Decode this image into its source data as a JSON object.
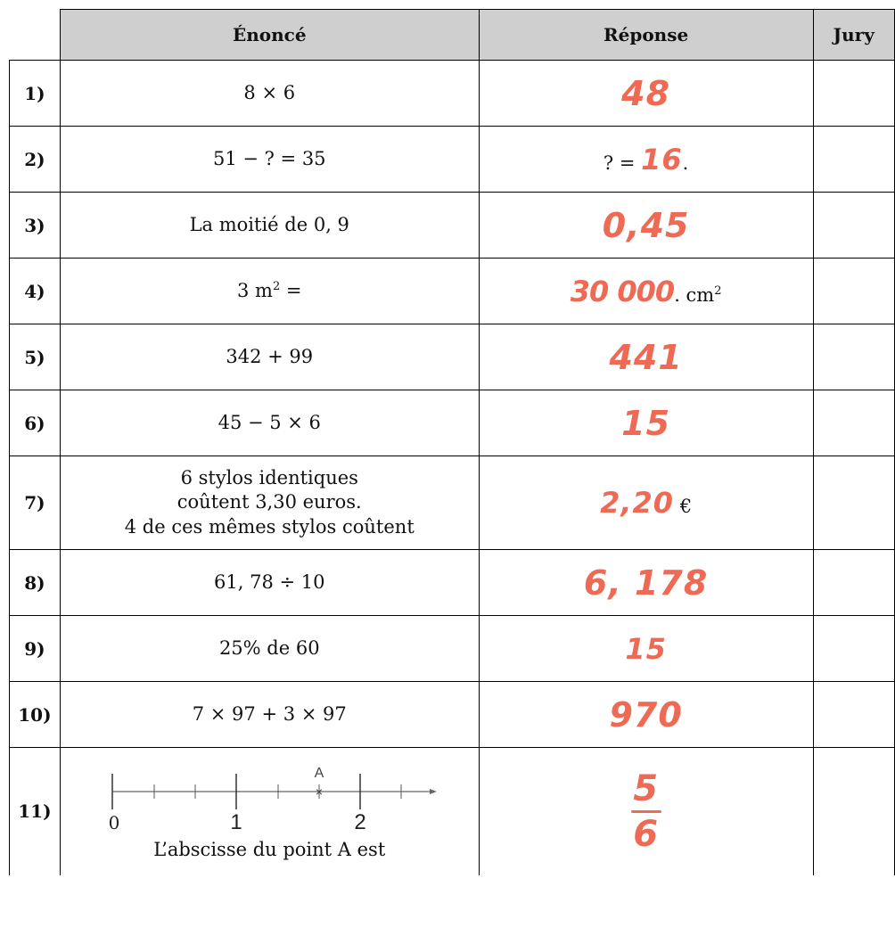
{
  "header": {
    "statement": "Énoncé",
    "answer": "Réponse",
    "jury": "Jury"
  },
  "rows": [
    {
      "num": "1)",
      "statement": "8 × 6",
      "answer": "48"
    },
    {
      "num": "2)",
      "statement": "51 − ?  = 35",
      "answer_prefix": "? =",
      "answer": "16",
      "answer_suffix": "."
    },
    {
      "num": "3)",
      "statement": "La moitié de 0, 9",
      "answer": "0,45"
    },
    {
      "num": "4)",
      "statement": "3 m",
      "statement_exp": "2",
      "statement_suffix": " =",
      "answer": "30 000",
      "answer_suffix": ". cm",
      "answer_suffix_exp": "2"
    },
    {
      "num": "5)",
      "statement": "342  +  99",
      "answer": "441"
    },
    {
      "num": "6)",
      "statement": "45 − 5 × 6",
      "answer": "15"
    },
    {
      "num": "7)",
      "statement_lines": [
        "6 stylos identiques",
        "coûtent 3,30 euros.",
        "4 de ces mêmes stylos coûtent"
      ],
      "answer": "2,20",
      "answer_suffix": " €"
    },
    {
      "num": "8)",
      "statement": "61, 78 ÷ 10",
      "answer": "6, 178"
    },
    {
      "num": "9)",
      "statement": "25% de 60",
      "answer": "15"
    },
    {
      "num": "10)",
      "statement": "7 × 97 + 3 × 97",
      "answer": "970"
    },
    {
      "num": "11)",
      "numberline": {
        "point_label": "A",
        "labels": [
          "0",
          "1",
          "2"
        ]
      },
      "statement": "L’abscisse du point A est",
      "answer_numerator": "5",
      "answer_denominator": "6"
    }
  ]
}
